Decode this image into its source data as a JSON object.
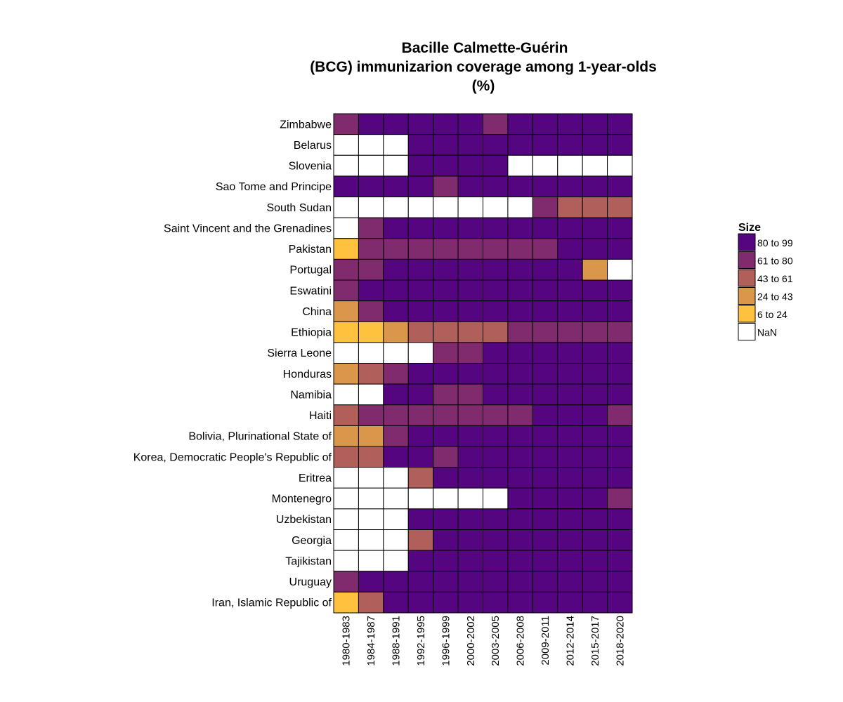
{
  "chart_data": {
    "type": "heatmap",
    "title_lines": [
      "Bacille Calmette-Guérin",
      "(BCG) immunizarion coverage among 1-year-olds",
      "(%)"
    ],
    "columns": [
      "1980-1983",
      "1984-1987",
      "1988-1991",
      "1992-1995",
      "1996-1999",
      "2000-2002",
      "2003-2005",
      "2006-2008",
      "2009-2011",
      "2012-2014",
      "2015-2017",
      "2018-2020"
    ],
    "rows": [
      "Zimbabwe",
      "Belarus",
      "Slovenia",
      "Sao Tome and Principe",
      "South Sudan",
      "Saint Vincent and the Grenadines",
      "Pakistan",
      "Portugal",
      "Eswatini",
      "China",
      "Ethiopia",
      "Sierra Leone",
      "Honduras",
      "Namibia",
      "Haiti",
      "Bolivia, Plurinational State of",
      "Korea, Democratic People's Republic of",
      "Eritrea",
      "Montenegro",
      "Uzbekistan",
      "Georgia",
      "Tajikistan",
      "Uruguay",
      "Iran, Islamic Republic of"
    ],
    "cells": [
      [
        4,
        5,
        5,
        5,
        5,
        5,
        4,
        5,
        5,
        5,
        5,
        5
      ],
      [
        0,
        0,
        0,
        5,
        5,
        5,
        5,
        5,
        5,
        5,
        5,
        5
      ],
      [
        0,
        0,
        0,
        5,
        5,
        5,
        5,
        0,
        0,
        0,
        0,
        0
      ],
      [
        5,
        5,
        5,
        5,
        4,
        5,
        5,
        5,
        5,
        5,
        5,
        5
      ],
      [
        0,
        0,
        0,
        0,
        0,
        0,
        0,
        0,
        4,
        3,
        3,
        3
      ],
      [
        0,
        4,
        5,
        5,
        5,
        5,
        5,
        5,
        5,
        5,
        5,
        5
      ],
      [
        1,
        4,
        4,
        4,
        4,
        4,
        4,
        4,
        4,
        5,
        5,
        5
      ],
      [
        4,
        4,
        5,
        5,
        5,
        5,
        5,
        5,
        5,
        5,
        2,
        0
      ],
      [
        4,
        5,
        5,
        5,
        5,
        5,
        5,
        5,
        5,
        5,
        5,
        5
      ],
      [
        2,
        4,
        5,
        5,
        5,
        5,
        5,
        5,
        5,
        5,
        5,
        5
      ],
      [
        1,
        1,
        2,
        3,
        3,
        3,
        3,
        4,
        4,
        4,
        4,
        4
      ],
      [
        0,
        0,
        0,
        0,
        4,
        4,
        5,
        5,
        5,
        5,
        5,
        5
      ],
      [
        2,
        3,
        4,
        5,
        5,
        5,
        5,
        5,
        5,
        5,
        5,
        5
      ],
      [
        0,
        0,
        5,
        5,
        4,
        4,
        5,
        5,
        5,
        5,
        5,
        5
      ],
      [
        3,
        4,
        4,
        4,
        4,
        4,
        4,
        4,
        5,
        5,
        5,
        4
      ],
      [
        2,
        2,
        4,
        5,
        5,
        5,
        5,
        5,
        5,
        5,
        5,
        5
      ],
      [
        3,
        3,
        5,
        5,
        4,
        5,
        5,
        5,
        5,
        5,
        5,
        5
      ],
      [
        0,
        0,
        0,
        3,
        5,
        5,
        5,
        5,
        5,
        5,
        5,
        5
      ],
      [
        0,
        0,
        0,
        0,
        0,
        0,
        0,
        5,
        5,
        5,
        5,
        4
      ],
      [
        0,
        0,
        0,
        5,
        5,
        5,
        5,
        5,
        5,
        5,
        5,
        5
      ],
      [
        0,
        0,
        0,
        3,
        5,
        5,
        5,
        5,
        5,
        5,
        5,
        5
      ],
      [
        0,
        0,
        0,
        5,
        5,
        5,
        5,
        5,
        5,
        5,
        5,
        5
      ],
      [
        4,
        5,
        5,
        5,
        5,
        5,
        5,
        5,
        5,
        5,
        5,
        5
      ],
      [
        1,
        3,
        5,
        5,
        5,
        5,
        5,
        5,
        5,
        5,
        5,
        5
      ]
    ],
    "cell_encoding": "legend index: 0 = NaN, 1 = 6 to 24, 2 = 24 to 43, 3 = 43 to 61, 4 = 61 to 80, 5 = 80 to 99",
    "legend": {
      "title": "Size",
      "placement": "right",
      "items": [
        {
          "index": 5,
          "label": "80 to 99",
          "color": "#54057F"
        },
        {
          "index": 4,
          "label": "61 to 80",
          "color": "#7F2B6D"
        },
        {
          "index": 3,
          "label": "43 to 61",
          "color": "#B05F5A"
        },
        {
          "index": 2,
          "label": "24 to 43",
          "color": "#DA974B"
        },
        {
          "index": 1,
          "label": "6 to 24",
          "color": "#FFC23F"
        },
        {
          "index": 0,
          "label": "NaN",
          "color": "#FFFFFF"
        }
      ]
    }
  }
}
